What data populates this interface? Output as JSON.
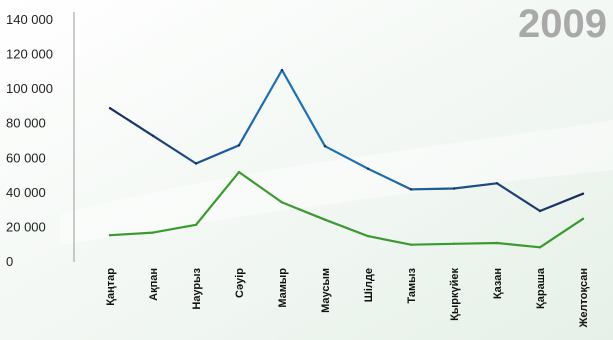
{
  "chart_data": {
    "type": "line",
    "title": "2009",
    "categories": [
      "Қаңтар",
      "Ақпан",
      "Наурыз",
      "Сәуір",
      "Мамыр",
      "Маусым",
      "Шілде",
      "Тамыз",
      "Қыркүйек",
      "Қазан",
      "Қараша",
      "Желтоқсан"
    ],
    "series": [
      {
        "values": [
          89000,
          73000,
          57000,
          67500,
          111000,
          67000,
          54000,
          42000,
          42500,
          45500,
          29500,
          39500
        ],
        "color": "#1a2a5a",
        "accent_color": "#1f72b8"
      },
      {
        "values": [
          15500,
          17000,
          21500,
          52000,
          34500,
          24500,
          15000,
          10000,
          10500,
          11000,
          8500,
          25000
        ],
        "color": "#3b9a2f"
      }
    ],
    "yticks": [
      "0",
      "20 000",
      "40 000",
      "60 000",
      "80 000",
      "100 000",
      "120 000",
      "140 000"
    ],
    "ylim": [
      0,
      140000
    ],
    "grid": false,
    "legend": "none"
  },
  "colors": {
    "axis": "#999999",
    "background_tint": "#e8f1ea"
  }
}
